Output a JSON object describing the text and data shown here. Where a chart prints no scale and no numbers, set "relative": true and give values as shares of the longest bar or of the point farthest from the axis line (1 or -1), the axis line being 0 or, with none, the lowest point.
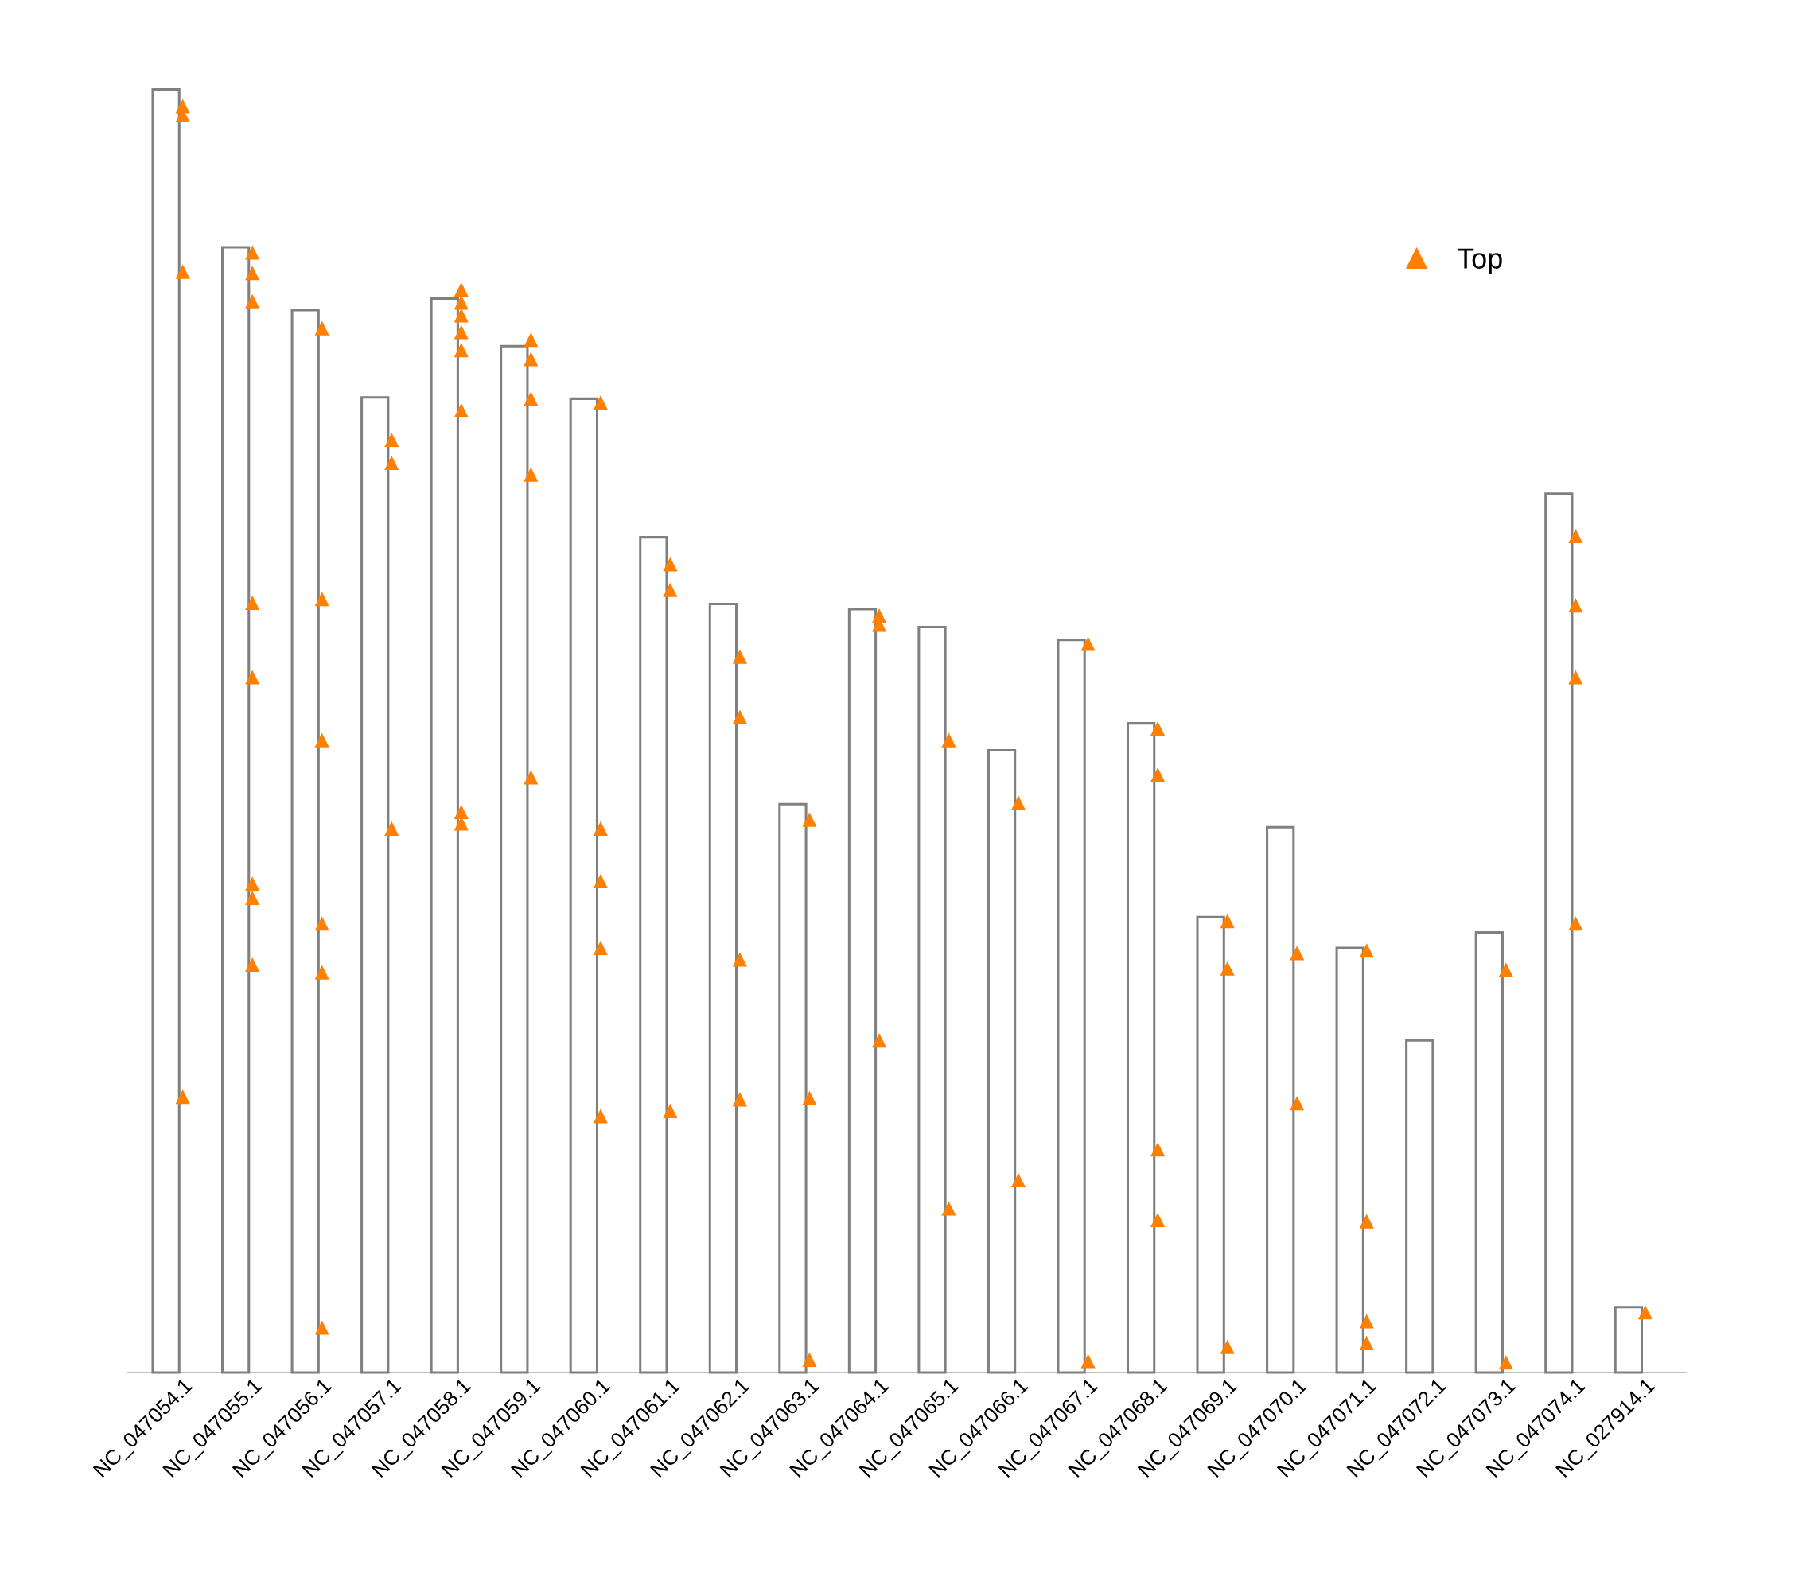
{
  "chart_data": {
    "type": "bar",
    "relative": true,
    "legend": "top right",
    "grid": false,
    "categories": [
      "NC_047054.1",
      "NC_047055.1",
      "NC_047056.1",
      "NC_047057.1",
      "NC_047058.1",
      "NC_047059.1",
      "NC_047060.1",
      "NC_047061.1",
      "NC_047062.1",
      "NC_047063.1",
      "NC_047064.1",
      "NC_047065.1",
      "NC_047066.1",
      "NC_047067.1",
      "NC_047068.1",
      "NC_047069.1",
      "NC_047070.1",
      "NC_047071.1",
      "NC_047072.1",
      "NC_047073.1",
      "NC_047074.1",
      "NC_027914.1"
    ],
    "series": [
      {
        "color": "#808080",
        "values": [
          1.0,
          0.877,
          0.828,
          0.76,
          0.837,
          0.8,
          0.759,
          0.651,
          0.599,
          0.443,
          0.595,
          0.581,
          0.485,
          0.571,
          0.506,
          0.355,
          0.425,
          0.331,
          0.259,
          0.343,
          0.685,
          0.051
        ]
      },
      {
        "type": "scatter",
        "name": "Top",
        "color": "#ff7f00",
        "marker": "triangle",
        "x": [
          "NC_047054.1",
          "NC_047054.1",
          "NC_047054.1",
          "NC_047054.1",
          "NC_047055.1",
          "NC_047055.1",
          "NC_047055.1",
          "NC_047055.1",
          "NC_047055.1",
          "NC_047055.1",
          "NC_047055.1",
          "NC_047055.1",
          "NC_047056.1",
          "NC_047056.1",
          "NC_047056.1",
          "NC_047056.1",
          "NC_047056.1",
          "NC_047056.1",
          "NC_047057.1",
          "NC_047057.1",
          "NC_047057.1",
          "NC_047058.1",
          "NC_047058.1",
          "NC_047058.1",
          "NC_047058.1",
          "NC_047058.1",
          "NC_047058.1",
          "NC_047058.1",
          "NC_047058.1",
          "NC_047059.1",
          "NC_047059.1",
          "NC_047059.1",
          "NC_047059.1",
          "NC_047059.1",
          "NC_047060.1",
          "NC_047060.1",
          "NC_047060.1",
          "NC_047060.1",
          "NC_047060.1",
          "NC_047061.1",
          "NC_047061.1",
          "NC_047061.1",
          "NC_047062.1",
          "NC_047062.1",
          "NC_047062.1",
          "NC_047062.1",
          "NC_047063.1",
          "NC_047063.1",
          "NC_047063.1",
          "NC_047064.1",
          "NC_047064.1",
          "NC_047064.1",
          "NC_047065.1",
          "NC_047065.1",
          "NC_047066.1",
          "NC_047066.1",
          "NC_047067.1",
          "NC_047067.1",
          "NC_047068.1",
          "NC_047068.1",
          "NC_047068.1",
          "NC_047068.1",
          "NC_047069.1",
          "NC_047069.1",
          "NC_047069.1",
          "NC_047070.1",
          "NC_047070.1",
          "NC_047071.1",
          "NC_047071.1",
          "NC_047071.1",
          "NC_047071.1",
          "NC_047073.1",
          "NC_047073.1",
          "NC_047074.1",
          "NC_047074.1",
          "NC_047074.1",
          "NC_047074.1",
          "NC_027914.1"
        ],
        "values": [
          0.987,
          0.98,
          0.858,
          0.215,
          0.873,
          0.857,
          0.835,
          0.6,
          0.542,
          0.381,
          0.37,
          0.318,
          0.814,
          0.603,
          0.493,
          0.35,
          0.312,
          0.035,
          0.727,
          0.709,
          0.424,
          0.844,
          0.834,
          0.824,
          0.811,
          0.797,
          0.75,
          0.437,
          0.428,
          0.805,
          0.79,
          0.759,
          0.7,
          0.464,
          0.756,
          0.424,
          0.383,
          0.331,
          0.2,
          0.63,
          0.61,
          0.204,
          0.558,
          0.511,
          0.322,
          0.213,
          0.431,
          0.214,
          0.01,
          0.59,
          0.583,
          0.259,
          0.493,
          0.128,
          0.444,
          0.15,
          0.568,
          0.009,
          0.502,
          0.466,
          0.174,
          0.119,
          0.352,
          0.315,
          0.02,
          0.327,
          0.21,
          0.329,
          0.118,
          0.04,
          0.023,
          0.314,
          0.008,
          0.652,
          0.598,
          0.542,
          0.35,
          0.047
        ]
      }
    ]
  }
}
